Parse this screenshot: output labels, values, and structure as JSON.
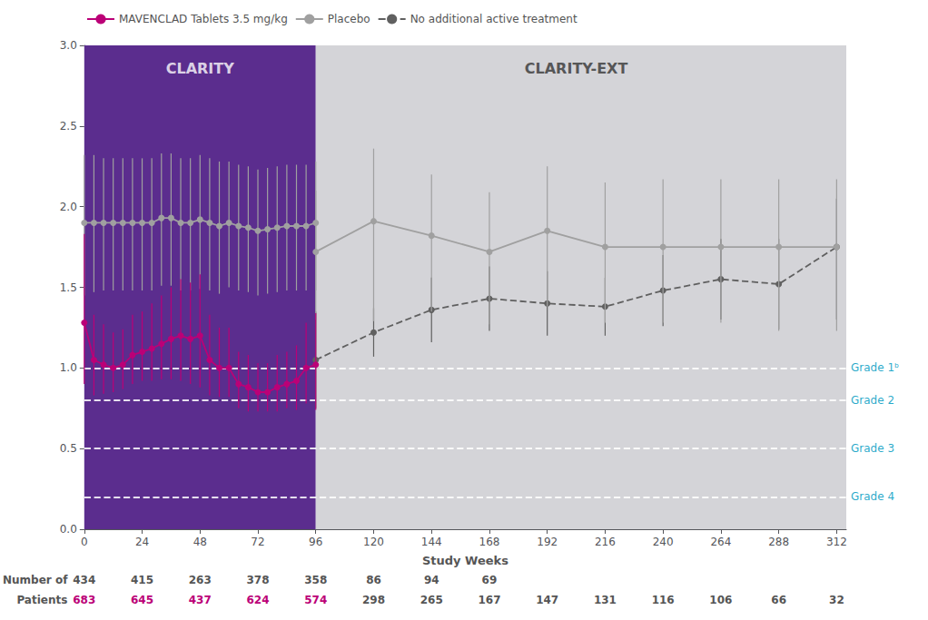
{
  "chart_data": {
    "type": "line",
    "xlabel": "Study Weeks",
    "xlim": [
      0,
      316
    ],
    "ylim": [
      0,
      3
    ],
    "xticks": [
      0,
      24,
      48,
      72,
      96,
      120,
      144,
      168,
      192,
      216,
      240,
      264,
      288,
      312
    ],
    "yticks": [
      {
        "value": 0,
        "label": "0.0"
      },
      0.5,
      {
        "value": 1,
        "label": "1.0"
      },
      1.5,
      {
        "value": 2,
        "label": "2.0"
      },
      2.5,
      {
        "value": 3,
        "label": "3.0"
      }
    ],
    "grid": false,
    "legend": "upper left",
    "series": [
      {
        "name": "MAVENCLAD Tablets 3.5 mg/kg",
        "color": "#bb0077",
        "marker": "circle",
        "line_style": "solid",
        "x": [
          0,
          4,
          8,
          12,
          16,
          20,
          24,
          28,
          32,
          36,
          40,
          44,
          48,
          52,
          56,
          60,
          64,
          68,
          72,
          76,
          80,
          84,
          88,
          92,
          96
        ],
        "values": [
          1.28,
          1.05,
          1.02,
          1.0,
          1.02,
          1.08,
          1.1,
          1.12,
          1.15,
          1.18,
          1.2,
          1.18,
          1.2,
          1.05,
          1.0,
          1.0,
          0.9,
          0.88,
          0.85,
          0.85,
          0.88,
          0.9,
          0.92,
          1.0,
          1.02
        ],
        "error_low": [
          0.38,
          0.22,
          0.18,
          0.15,
          0.15,
          0.18,
          0.18,
          0.2,
          0.22,
          0.25,
          0.28,
          0.28,
          0.32,
          0.22,
          0.18,
          0.18,
          0.15,
          0.15,
          0.12,
          0.12,
          0.15,
          0.15,
          0.18,
          0.22,
          0.28
        ],
        "error_high": [
          0.55,
          0.28,
          0.25,
          0.22,
          0.22,
          0.25,
          0.25,
          0.28,
          0.3,
          0.32,
          0.35,
          0.35,
          0.38,
          0.28,
          0.25,
          0.25,
          0.2,
          0.2,
          0.18,
          0.18,
          0.2,
          0.2,
          0.22,
          0.28,
          0.32
        ]
      },
      {
        "name": "Placebo",
        "color": "#a0a0a0",
        "marker": "circle",
        "line_style": "solid",
        "x": [
          0,
          4,
          8,
          12,
          16,
          20,
          24,
          28,
          32,
          36,
          40,
          44,
          48,
          52,
          56,
          60,
          64,
          68,
          72,
          76,
          80,
          84,
          88,
          92,
          96
        ],
        "values": [
          1.9,
          1.9,
          1.9,
          1.9,
          1.9,
          1.9,
          1.9,
          1.9,
          1.93,
          1.93,
          1.9,
          1.9,
          1.92,
          1.9,
          1.88,
          1.9,
          1.88,
          1.87,
          1.85,
          1.86,
          1.87,
          1.88,
          1.88,
          1.88,
          1.9
        ],
        "error_low": [
          0.45,
          0.43,
          0.42,
          0.42,
          0.42,
          0.42,
          0.42,
          0.42,
          0.42,
          0.42,
          0.42,
          0.42,
          0.43,
          0.42,
          0.42,
          0.4,
          0.4,
          0.4,
          0.4,
          0.4,
          0.4,
          0.4,
          0.4,
          0.4,
          0.42
        ],
        "error_high": [
          0.42,
          0.42,
          0.4,
          0.4,
          0.4,
          0.4,
          0.4,
          0.4,
          0.4,
          0.4,
          0.4,
          0.4,
          0.4,
          0.4,
          0.4,
          0.38,
          0.38,
          0.38,
          0.38,
          0.38,
          0.38,
          0.38,
          0.38,
          0.38,
          0.38
        ]
      },
      {
        "name": "Placebo",
        "color": "#a0a0a0",
        "marker": "circle",
        "line_style": "solid",
        "x": [
          96,
          120,
          144,
          168,
          192,
          216,
          240,
          264,
          288,
          312
        ],
        "values": [
          1.72,
          1.91,
          1.82,
          1.72,
          1.85,
          1.75,
          1.75,
          1.75,
          1.75,
          1.75
        ],
        "error_low": [
          0.42,
          0.62,
          0.47,
          0.45,
          0.47,
          0.47,
          0.47,
          0.47,
          0.52,
          0.52
        ],
        "error_high": [
          0.38,
          0.45,
          0.38,
          0.37,
          0.4,
          0.4,
          0.42,
          0.42,
          0.42,
          0.42
        ]
      },
      {
        "name": "No additional active treatment",
        "color": "#606060",
        "marker": "circle",
        "line_style": "dashed",
        "x": [
          96,
          120,
          144,
          168,
          192,
          216,
          240,
          264,
          288,
          312
        ],
        "values": [
          1.05,
          1.22,
          1.36,
          1.43,
          1.4,
          1.38,
          1.48,
          1.55,
          1.52,
          1.75
        ],
        "error_low": [
          0.3,
          0.15,
          0.2,
          0.2,
          0.2,
          0.18,
          0.22,
          0.25,
          0.28,
          0.45
        ],
        "error_high": [
          0.3,
          0.15,
          0.2,
          0.2,
          0.2,
          0.18,
          0.22,
          0.25,
          0.28,
          0.3
        ]
      }
    ],
    "regions": [
      {
        "x": [
          0,
          96
        ],
        "color": "#5b2d8e"
      },
      {
        "x": [
          96,
          320
        ],
        "color": "#d4d4d8"
      }
    ],
    "annotations": [
      {
        "text": "CLARITY",
        "x": 48,
        "y": 2.9,
        "color": "#ffffff"
      },
      {
        "text": "CLARITY-EXT",
        "x": 204,
        "y": 2.9,
        "color": "#333333"
      }
    ],
    "grade_lines": {
      "color": "#ffffff",
      "label_color": "#009abf",
      "lines": [
        {
          "y": 1.0,
          "label": "Grade 1ᵇ"
        },
        {
          "y": 0.8,
          "label": "Grade 2"
        },
        {
          "y": 0.5,
          "label": "Grade 3"
        },
        {
          "y": 0.2,
          "label": "Grade 4"
        }
      ]
    },
    "patient_table": {
      "rows": [
        {
          "label": "Number of",
          "color": "#555555",
          "values": [
            434,
            415,
            263,
            378,
            358,
            86,
            94,
            69,
            null,
            null,
            null,
            null,
            null,
            null
          ]
        },
        {
          "label": "Patients",
          "colors": [
            "#bb0077",
            "#bb0077",
            "#bb0077",
            "#bb0077",
            "#bb0077",
            "#555555",
            "#555555",
            "#555555",
            "#555555",
            "#555555",
            "#555555",
            "#555555",
            "#555555",
            "#555555"
          ],
          "values": [
            683,
            645,
            437,
            624,
            574,
            298,
            265,
            167,
            147,
            131,
            116,
            106,
            66,
            32
          ]
        }
      ]
    }
  }
}
